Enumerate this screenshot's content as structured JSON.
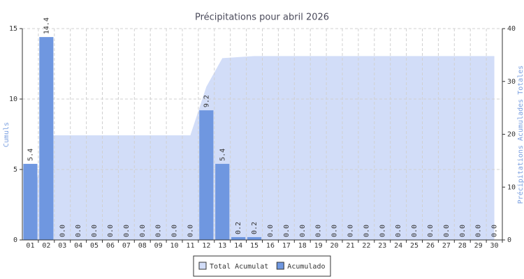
{
  "chart_data": {
    "type": "bar",
    "title": "Précipitations pour abril 2026",
    "y_label": "Cumuls",
    "y2_label": "Précipitations Acumulades Totales",
    "categories": [
      "01",
      "02",
      "03",
      "04",
      "05",
      "06",
      "07",
      "08",
      "09",
      "10",
      "11",
      "12",
      "13",
      "14",
      "15",
      "16",
      "17",
      "18",
      "19",
      "20",
      "21",
      "22",
      "23",
      "24",
      "25",
      "26",
      "27",
      "28",
      "29",
      "30"
    ],
    "series": [
      {
        "name": "Total Acumulat",
        "type": "area",
        "axis": "y2",
        "color": "#d2ddf8",
        "values": [
          5.4,
          19.8,
          19.8,
          19.8,
          19.8,
          19.8,
          19.8,
          19.8,
          19.8,
          19.8,
          19.8,
          29,
          34.4,
          34.6,
          34.8,
          34.8,
          34.8,
          34.8,
          34.8,
          34.8,
          34.8,
          34.8,
          34.8,
          34.8,
          34.8,
          34.8,
          34.8,
          34.8,
          34.8,
          34.8
        ]
      },
      {
        "name": "Acumulado",
        "type": "bar",
        "color": "#6f97e0",
        "values": [
          5.4,
          14.4,
          0,
          0,
          0,
          0,
          0,
          0,
          0,
          0,
          0,
          9.2,
          5.4,
          0.2,
          0.2,
          0,
          0,
          0,
          0,
          0,
          0,
          0,
          0,
          0,
          0,
          0,
          0,
          0,
          0,
          0
        ],
        "value_labels": [
          "5.4",
          "14.4",
          "0.0",
          "0.0",
          "0.0",
          "0.0",
          "0.0",
          "0.0",
          "0.0",
          "0.0",
          "0.0",
          "9.2",
          "5.4",
          "0.2",
          "0.2",
          "0.0",
          "0.0",
          "0.0",
          "0.0",
          "0.0",
          "0.0",
          "0.0",
          "0.0",
          "0.0",
          "0.0",
          "0.0",
          "0.0",
          "0.0",
          "0.0",
          "0.0"
        ]
      }
    ],
    "ylim": [
      0,
      15
    ],
    "yticks": [
      0,
      5,
      10,
      15
    ],
    "y2lim": [
      0,
      40
    ],
    "y2ticks": [
      0,
      10,
      20,
      30,
      40
    ],
    "grid": true
  }
}
